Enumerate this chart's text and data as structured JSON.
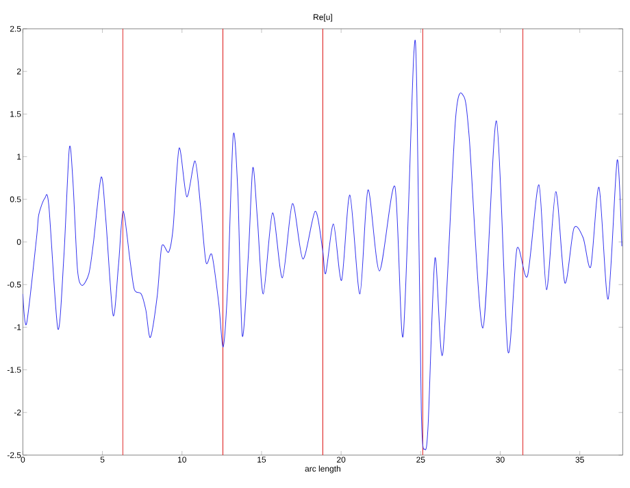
{
  "chart_data": {
    "type": "line",
    "title": "Re[u]",
    "xlabel": "arc length",
    "x": [
      0,
      0.23,
      0.86,
      1.0,
      1.37,
      1.63,
      2.2,
      2.58,
      2.92,
      3.15,
      3.43,
      3.72,
      4.15,
      4.44,
      4.92,
      5.21,
      5.67,
      6.01,
      6.3,
      6.73,
      7.01,
      7.44,
      7.73,
      8.01,
      8.44,
      8.73,
      9.16,
      9.44,
      9.82,
      10.3,
      10.82,
      11.16,
      11.51,
      11.88,
      12.31,
      12.59,
      12.88,
      13.22,
      13.51,
      13.79,
      14.17,
      14.45,
      14.74,
      15.11,
      15.69,
      16.31,
      16.94,
      17.6,
      18.37,
      18.83,
      19.03,
      19.52,
      20.03,
      20.55,
      21.18,
      21.69,
      22.41,
      23.38,
      23.9,
      24.56,
      24.76,
      25.04,
      25.27,
      25.47,
      25.9,
      26.39,
      27.19,
      27.7,
      28.05,
      28.91,
      29.76,
      30.48,
      31.05,
      31.71,
      32.43,
      32.91,
      33.49,
      34.06,
      34.63,
      35.21,
      35.69,
      36.21,
      36.78,
      37.35,
      37.64
    ],
    "values": [
      -0.61,
      -0.96,
      0.05,
      0.32,
      0.51,
      0.43,
      -1.02,
      -0.16,
      1.1,
      0.7,
      -0.32,
      -0.51,
      -0.37,
      0,
      0.76,
      0.27,
      -0.86,
      -0.27,
      0.36,
      -0.21,
      -0.56,
      -0.61,
      -0.8,
      -1.12,
      -0.64,
      -0.05,
      -0.12,
      0.16,
      1.1,
      0.53,
      0.95,
      0.43,
      -0.24,
      -0.15,
      -0.72,
      -1.23,
      -0.48,
      1.25,
      0.59,
      -1.1,
      -0.16,
      0.87,
      0.27,
      -0.61,
      0.34,
      -0.42,
      0.45,
      -0.2,
      0.36,
      -0.08,
      -0.37,
      0.21,
      -0.45,
      0.55,
      -0.61,
      0.61,
      -0.34,
      0.65,
      -1.1,
      2.17,
      1.76,
      -1.98,
      -2.43,
      -2.14,
      -0.19,
      -1.31,
      1.44,
      1.71,
      1.23,
      -1.01,
      1.42,
      -1.28,
      -0.08,
      -0.4,
      0.67,
      -0.56,
      0.59,
      -0.48,
      0.16,
      0.05,
      -0.29,
      0.64,
      -0.67,
      0.96,
      -0.05
    ],
    "color": "#3333ee",
    "xlim": [
      0,
      37.7
    ],
    "ylim": [
      -2.5,
      2.5
    ],
    "xticks": [
      0,
      5,
      10,
      15,
      20,
      25,
      30,
      35
    ],
    "yticks": [
      -2.5,
      -2,
      -1.5,
      -1,
      -0.5,
      0,
      0.5,
      1,
      1.5,
      2,
      2.5
    ],
    "ref_lines": [
      {
        "axis": "x",
        "value": 6.28,
        "color": "#e03030"
      },
      {
        "axis": "x",
        "value": 12.57,
        "color": "#e03030"
      },
      {
        "axis": "x",
        "value": 18.85,
        "color": "#e03030"
      },
      {
        "axis": "x",
        "value": 25.13,
        "color": "#e03030"
      },
      {
        "axis": "x",
        "value": 31.42,
        "color": "#e03030"
      }
    ]
  }
}
